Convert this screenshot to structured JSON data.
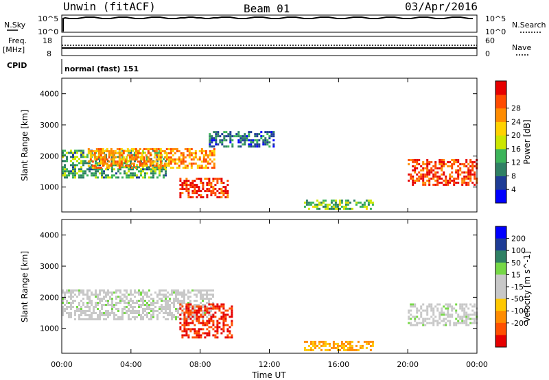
{
  "header": {
    "station": "Unwin (fitACF)",
    "beam": "Beam 01",
    "date": "03/Apr/2016"
  },
  "top_panels": {
    "nsky_label": "N.Sky",
    "nsky_ticks": [
      "10^5",
      "10^0"
    ],
    "nsearch_label": "N.Search",
    "nsearch_ticks": [
      "10^5",
      "10^0"
    ],
    "freq_label_1": "Freq.",
    "freq_label_2": "[MHz]",
    "freq_ticks": [
      "18",
      "8"
    ],
    "nave_label": "Nave",
    "nave_ticks": [
      "60",
      "0"
    ],
    "cpid_label": "CPID",
    "cpid_value": "normal (fast) 151"
  },
  "colors": {
    "power_scale": [
      "#0000ff",
      "#1e3c96",
      "#2f8064",
      "#3cb45a",
      "#cce600",
      "#ffd200",
      "#ff8c00",
      "#ff4b00",
      "#e60000"
    ],
    "velocity_scale": [
      "#0000ff",
      "#1e3c96",
      "#2f8064",
      "#76d846",
      "#c8c8c8",
      "#c8c8c8",
      "#ffc800",
      "#ff8c00",
      "#ff5000",
      "#e60000"
    ]
  },
  "chart_data": [
    {
      "type": "heatmap",
      "title": "Power",
      "ylabel": "Slant Range [km]",
      "xlabel": "Time UT",
      "x_ticks": [
        "00:00",
        "04:00",
        "08:00",
        "12:00",
        "16:00",
        "20:00",
        "00:00"
      ],
      "y_ticks": [
        "1000",
        "2000",
        "3000",
        "4000"
      ],
      "ylim": [
        200,
        4500
      ],
      "colorbar": {
        "label": "Power [dB]",
        "ticks": [
          "4",
          "8",
          "12",
          "16",
          "20",
          "24",
          "28"
        ]
      },
      "regions": [
        {
          "t0": 0.0,
          "t1": 6.0,
          "r0": 1300,
          "r1": 2200,
          "level": 0.35
        },
        {
          "t0": 1.5,
          "t1": 8.8,
          "r0": 1650,
          "r1": 2250,
          "level": 0.75
        },
        {
          "t0": 6.8,
          "t1": 9.6,
          "r0": 700,
          "r1": 1300,
          "level": 0.95
        },
        {
          "t0": 8.5,
          "t1": 12.2,
          "r0": 2300,
          "r1": 2800,
          "level": 0.2
        },
        {
          "t0": 20.0,
          "t1": 24.0,
          "r0": 1100,
          "r1": 1900,
          "level": 0.9
        },
        {
          "t0": 14.0,
          "t1": 18.0,
          "r0": 300,
          "r1": 600,
          "level": 0.4
        }
      ]
    },
    {
      "type": "heatmap",
      "title": "Velocity",
      "ylabel": "Slant Range [km]",
      "xlabel": "Time UT",
      "x_ticks": [
        "00:00",
        "04:00",
        "08:00",
        "12:00",
        "16:00",
        "20:00",
        "00:00"
      ],
      "y_ticks": [
        "1000",
        "2000",
        "3000",
        "4000"
      ],
      "ylim": [
        200,
        4500
      ],
      "colorbar": {
        "label": "Velocity [m s^-1]",
        "ticks": [
          "200",
          "100",
          "50",
          "15",
          "-15",
          "-50",
          "-100",
          "-200"
        ]
      },
      "regions": [
        {
          "t0": 0.0,
          "t1": 8.8,
          "r0": 1300,
          "r1": 2250,
          "velocity": 0
        },
        {
          "t0": 6.8,
          "t1": 9.8,
          "r0": 700,
          "r1": 1800,
          "velocity": -200
        },
        {
          "t0": 14.0,
          "t1": 18.0,
          "r0": 300,
          "r1": 600,
          "velocity": -50
        },
        {
          "t0": 20.0,
          "t1": 24.0,
          "r0": 1100,
          "r1": 1800,
          "velocity": 0
        }
      ]
    }
  ]
}
